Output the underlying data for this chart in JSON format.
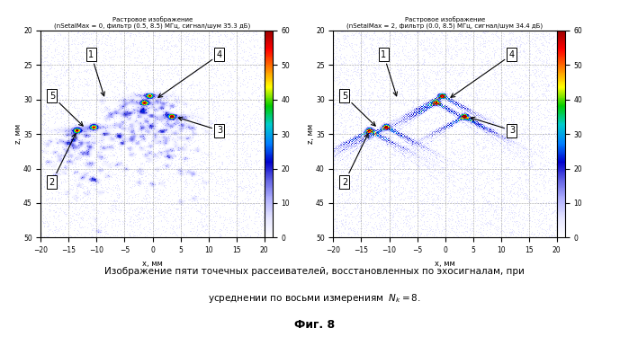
{
  "title1": "Растровое изображение",
  "subtitle1": "(nSetalMax = 0, фильтр (0.5, 8.5) МГц, сигнал/шум 35.3 дБ)",
  "title2": "Растровое изображение",
  "subtitle2": "(nSetalMax = 2, фильтр (0.0, 8.5) МГц, сигнал/шум 34.4 дБ)",
  "xlabel": "x, мм",
  "ylabel": "z, мм",
  "xlim": [
    -20,
    20
  ],
  "ylim": [
    50,
    20
  ],
  "xticks": [
    -20,
    -15,
    -10,
    -5,
    0,
    5,
    10,
    15,
    20
  ],
  "yticks": [
    20,
    25,
    30,
    35,
    40,
    45,
    50
  ],
  "clim": [
    0,
    60
  ],
  "cticks": [
    0,
    10,
    20,
    30,
    40,
    50,
    60
  ],
  "caption_line1": "Изображение пяти точечных рассеивателей, восстановленных по эхосигналам, при",
  "caption_line2": "усреднении по восьми измерениям  $N_k = 8$.",
  "fig_label": "Фиг. 8",
  "background_color": "#ffffff",
  "scatterers": [
    [
      -10.5,
      34.0
    ],
    [
      -13.5,
      34.5
    ],
    [
      -1.5,
      30.5
    ],
    [
      3.5,
      32.5
    ],
    [
      -0.5,
      29.5
    ]
  ],
  "label_configs": [
    [
      "1",
      [
        -11,
        23.5
      ],
      [
        -8.5,
        30.0
      ]
    ],
    [
      "2",
      [
        -18,
        42.0
      ],
      [
        -13.5,
        34.5
      ]
    ],
    [
      "3",
      [
        12,
        34.5
      ],
      [
        4.0,
        32.5
      ]
    ],
    [
      "4",
      [
        12,
        23.5
      ],
      [
        0.5,
        30.0
      ]
    ],
    [
      "5",
      [
        -18,
        29.5
      ],
      [
        -12.0,
        34.2
      ]
    ]
  ]
}
